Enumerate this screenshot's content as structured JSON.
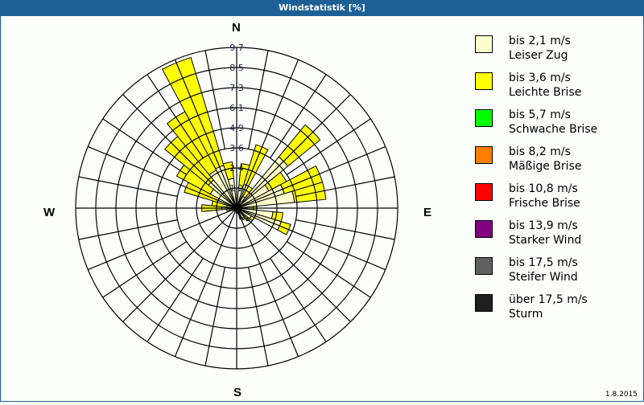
{
  "window": {
    "title": "Windstatistik [%]"
  },
  "compass": {
    "n": "N",
    "e": "E",
    "s": "S",
    "w": "W"
  },
  "footer": {
    "date": "1.8.2015"
  },
  "legend": [
    {
      "range": "bis 2,1 m/s",
      "name": "Leiser Zug",
      "color": "#ffffcc"
    },
    {
      "range": "bis 3,6 m/s",
      "name": "Leichte Brise",
      "color": "#ffff00"
    },
    {
      "range": "bis 5,7 m/s",
      "name": "Schwache Brise",
      "color": "#00ff00"
    },
    {
      "range": "bis 8,2 m/s",
      "name": "Mäßige Brise",
      "color": "#ff8000"
    },
    {
      "range": "bis 10,8 m/s",
      "name": "Frische Brise",
      "color": "#ff0000"
    },
    {
      "range": "bis 13,9 m/s",
      "name": "Starker Wind",
      "color": "#800080"
    },
    {
      "range": "bis 17,5 m/s",
      "name": "Steifer Wind",
      "color": "#606060"
    },
    {
      "range": "über 17,5 m/s",
      "name": "Sturm",
      "color": "#202020"
    }
  ],
  "chart_data": {
    "type": "polar-stacked-bar (wind rose)",
    "title": "Windstatistik [%]",
    "unit": "%",
    "radial_ticks": [
      "1,2",
      "2,4",
      "3,6",
      "4,9",
      "6,1",
      "7,3",
      "8,5",
      "9,7"
    ],
    "rmax": 9.7,
    "sector_width_deg": 11.25,
    "directions_deg": [
      0,
      11.25,
      22.5,
      33.75,
      45,
      56.25,
      67.5,
      78.75,
      90,
      101.25,
      112.5,
      123.75,
      135,
      146.25,
      157.5,
      168.75,
      180,
      191.25,
      202.5,
      213.75,
      225,
      236.25,
      247.5,
      258.75,
      270,
      281.25,
      292.5,
      303.75,
      315,
      326.25,
      337.5,
      348.75
    ],
    "series": [
      {
        "name": "bis 2,1 m/s (Leiser Zug)",
        "values": [
          0.4,
          1.2,
          1.5,
          0.8,
          4.0,
          2.2,
          3.0,
          3.5,
          1.0,
          2.2,
          2.8,
          1.0,
          0.9,
          0.7,
          0.6,
          0.3,
          0.3,
          0.2,
          0.2,
          0.2,
          0.2,
          0.2,
          0.3,
          0.4,
          0.9,
          0.6,
          1.2,
          1.8,
          2.2,
          2.6,
          2.7,
          1.8
        ]
      },
      {
        "name": "bis 3,6 m/s (Leichte Brise)",
        "values": [
          0.2,
          1.5,
          2.5,
          0.7,
          2.5,
          1.2,
          2.4,
          1.9,
          0.2,
          0.6,
          0.6,
          0.2,
          0.1,
          0.1,
          0.1,
          0.0,
          0.0,
          0.0,
          0.0,
          0.0,
          0.0,
          0.0,
          0.0,
          0.2,
          1.2,
          0.9,
          2.1,
          2.3,
          3.4,
          4.0,
          6.8,
          1.0
        ]
      },
      {
        "name": "bis 5,7 m/s (Schwache Brise)",
        "values": []
      },
      {
        "name": "bis 8,2 m/s (Mäßige Brise)",
        "values": []
      },
      {
        "name": "bis 10,8 m/s (Frische Brise)",
        "values": []
      },
      {
        "name": "bis 13,9 m/s (Starker Wind)",
        "values": []
      },
      {
        "name": "bis 17,5 m/s (Steifer Wind)",
        "values": []
      },
      {
        "name": "über 17,5 m/s (Sturm)",
        "values": []
      }
    ],
    "legend_position": "right",
    "grid": true
  }
}
